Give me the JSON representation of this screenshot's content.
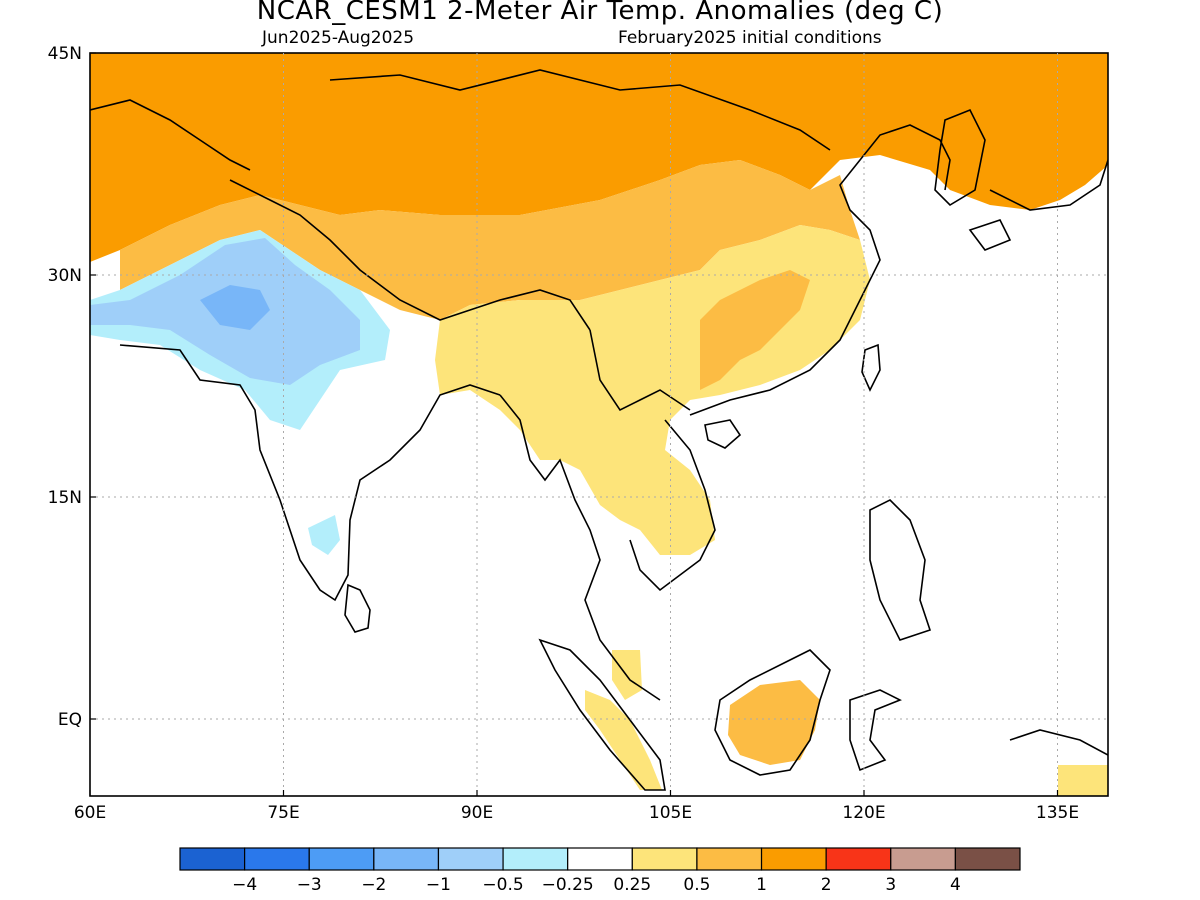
{
  "title": "NCAR_CESM1 2-Meter Air Temp. Anomalies (deg C)",
  "period": "Jun2025-Aug2025",
  "initial_conditions": "February2025 initial conditions",
  "lat_labels": [
    "45N",
    "30N",
    "15N",
    "EQ"
  ],
  "lon_labels": [
    "60E",
    "75E",
    "90E",
    "105E",
    "120E",
    "135E"
  ],
  "colorbar": {
    "colors": [
      "#1b62d2",
      "#2a78eb",
      "#4d9cf5",
      "#78b6f8",
      "#9fcff9",
      "#b3eefb",
      "#ffffff",
      "#fde47a",
      "#fcbc44",
      "#fa9c00",
      "#f83418",
      "#c89c90",
      "#7a5046"
    ],
    "tick_labels": [
      "-4",
      "-3",
      "-2",
      "-1",
      "-0.5",
      "-0.25",
      "0.25",
      "0.5",
      "1",
      "2",
      "3",
      "4"
    ]
  },
  "palette": {
    "orange": "#fa9c00",
    "light_orange": "#fcbc44",
    "yellow": "#fde47a",
    "light_blue": "#b3eefb",
    "mid_blue": "#9fcff9",
    "blue": "#78b6f8"
  }
}
